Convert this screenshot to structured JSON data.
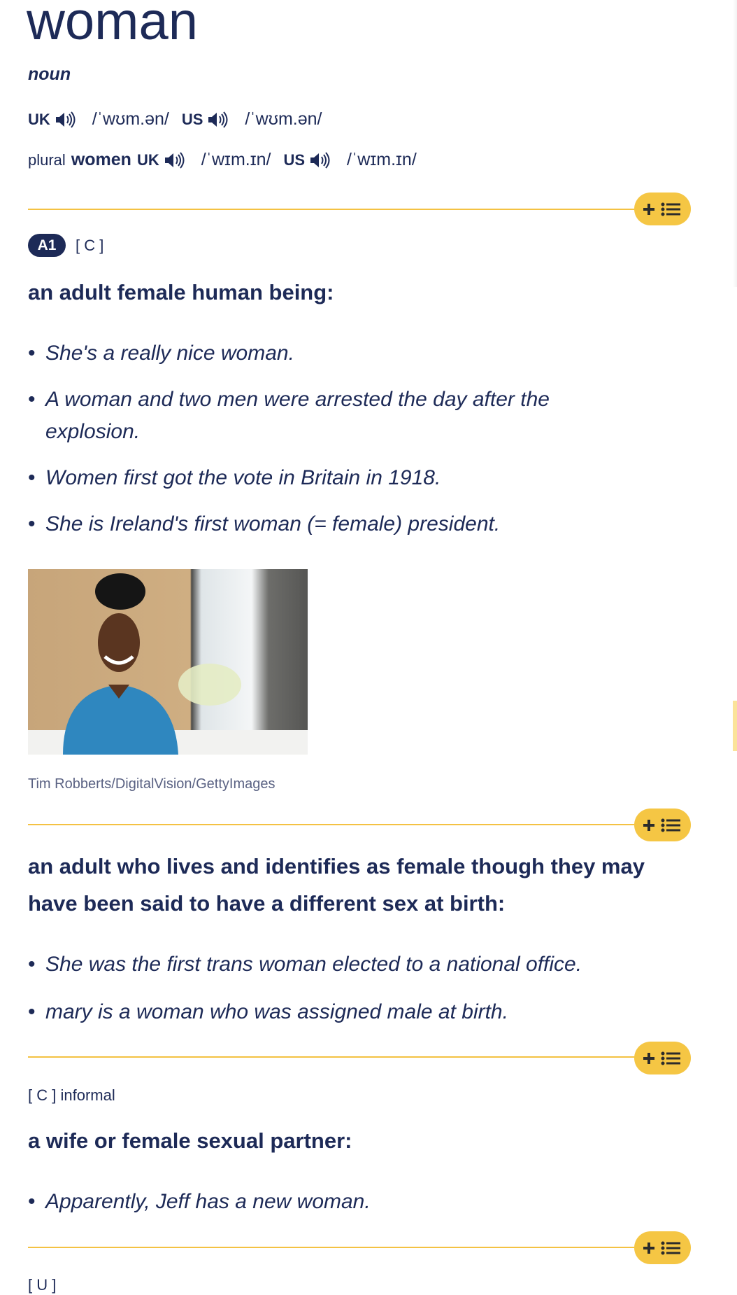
{
  "headword": "woman",
  "part_of_speech": "noun",
  "pronunciations": {
    "uk_label": "UK",
    "uk_ipa": "/ˈwʊm.ən/",
    "us_label": "US",
    "us_ipa": "/ˈwʊm.ən/"
  },
  "plural": {
    "label": "plural",
    "form": "women",
    "uk_label": "UK",
    "uk_ipa": "/ˈwɪm.ɪn/",
    "us_label": "US",
    "us_ipa": "/ˈwɪm.ɪn/"
  },
  "colors": {
    "text": "#1d2a57",
    "accent": "#f5c644",
    "rule": "#f4c243"
  },
  "senses": [
    {
      "level": "A1",
      "grammar": "[ C ]",
      "definition": "an adult female human being:",
      "examples": [
        "She's a really nice woman.",
        "A woman and two men were arrested the day after the explosion.",
        "Women first got the vote in Britain in 1918.",
        "She is Ireland's first woman (= female) president."
      ],
      "image_credit": "Tim Robberts/DigitalVision/GettyImages"
    },
    {
      "definition": "an adult who lives and identifies as female though they may have been said to have a different sex at birth:",
      "examples": [
        "She was the first trans woman elected to a national office.",
        "mary is a woman who was assigned male at birth."
      ]
    },
    {
      "grammar": "[ C ]",
      "usage": "informal",
      "definition": "a wife or female sexual partner:",
      "examples": [
        "Apparently, Jeff has a new woman."
      ]
    },
    {
      "grammar": "[ U ]"
    }
  ],
  "icons": {
    "audio": "speaker-icon",
    "add_to_list": "plus-list-icon"
  }
}
